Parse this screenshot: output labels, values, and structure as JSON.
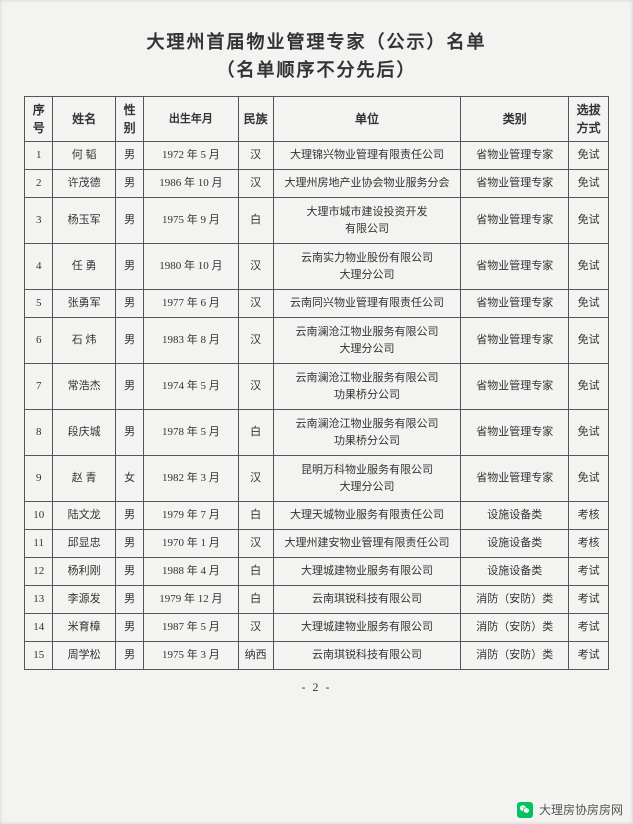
{
  "title": "大理州首届物业管理专家（公示）名单",
  "subtitle": "（名单顺序不分先后）",
  "columns": {
    "seq": "序号",
    "name": "姓名",
    "sex": "性别",
    "birth": "出生年月",
    "eth": "民族",
    "unit": "单位",
    "cat": "类别",
    "sel": "选拔方式"
  },
  "rows": [
    {
      "seq": "1",
      "name": "何 韬",
      "sex": "男",
      "birth": "1972 年 5 月",
      "eth": "汉",
      "unit": "大理锦兴物业管理有限责任公司",
      "cat": "省物业管理专家",
      "sel": "免试",
      "h": "short"
    },
    {
      "seq": "2",
      "name": "许茂德",
      "sex": "男",
      "birth": "1986 年 10 月",
      "eth": "汉",
      "unit": "大理州房地产业协会物业服务分会",
      "cat": "省物业管理专家",
      "sel": "免试",
      "h": "short"
    },
    {
      "seq": "3",
      "name": "杨玉军",
      "sex": "男",
      "birth": "1975 年 9 月",
      "eth": "白",
      "unit": "大理市城市建设投资开发\n有限公司",
      "cat": "省物业管理专家",
      "sel": "免试",
      "h": "tall"
    },
    {
      "seq": "4",
      "name": "任 勇",
      "sex": "男",
      "birth": "1980 年 10 月",
      "eth": "汉",
      "unit": "云南实力物业股份有限公司\n大理分公司",
      "cat": "省物业管理专家",
      "sel": "免试",
      "h": "tall"
    },
    {
      "seq": "5",
      "name": "张勇军",
      "sex": "男",
      "birth": "1977 年 6 月",
      "eth": "汉",
      "unit": "云南同兴物业管理有限责任公司",
      "cat": "省物业管理专家",
      "sel": "免试",
      "h": "short"
    },
    {
      "seq": "6",
      "name": "石 炜",
      "sex": "男",
      "birth": "1983 年 8 月",
      "eth": "汉",
      "unit": "云南澜沧江物业服务有限公司\n大理分公司",
      "cat": "省物业管理专家",
      "sel": "免试",
      "h": "tall"
    },
    {
      "seq": "7",
      "name": "常浩杰",
      "sex": "男",
      "birth": "1974 年 5 月",
      "eth": "汉",
      "unit": "云南澜沧江物业服务有限公司\n功果桥分公司",
      "cat": "省物业管理专家",
      "sel": "免试",
      "h": "tall"
    },
    {
      "seq": "8",
      "name": "段庆城",
      "sex": "男",
      "birth": "1978 年 5 月",
      "eth": "白",
      "unit": "云南澜沧江物业服务有限公司\n功果桥分公司",
      "cat": "省物业管理专家",
      "sel": "免试",
      "h": "tall"
    },
    {
      "seq": "9",
      "name": "赵 青",
      "sex": "女",
      "birth": "1982 年 3 月",
      "eth": "汉",
      "unit": "昆明万科物业服务有限公司\n大理分公司",
      "cat": "省物业管理专家",
      "sel": "免试",
      "h": "tall"
    },
    {
      "seq": "10",
      "name": "陆文龙",
      "sex": "男",
      "birth": "1979 年 7 月",
      "eth": "白",
      "unit": "大理天城物业服务有限责任公司",
      "cat": "设施设备类",
      "sel": "考核",
      "h": "short"
    },
    {
      "seq": "11",
      "name": "邱显忠",
      "sex": "男",
      "birth": "1970 年 1 月",
      "eth": "汉",
      "unit": "大理州建安物业管理有限责任公司",
      "cat": "设施设备类",
      "sel": "考核",
      "h": "short"
    },
    {
      "seq": "12",
      "name": "杨利刚",
      "sex": "男",
      "birth": "1988 年 4 月",
      "eth": "白",
      "unit": "大理城建物业服务有限公司",
      "cat": "设施设备类",
      "sel": "考试",
      "h": "short"
    },
    {
      "seq": "13",
      "name": "李源发",
      "sex": "男",
      "birth": "1979 年 12 月",
      "eth": "白",
      "unit": "云南琪锐科技有限公司",
      "cat": "消防（安防）类",
      "sel": "考试",
      "h": "short"
    },
    {
      "seq": "14",
      "name": "米育樟",
      "sex": "男",
      "birth": "1987 年 5 月",
      "eth": "汉",
      "unit": "大理城建物业服务有限公司",
      "cat": "消防（安防）类",
      "sel": "考试",
      "h": "short"
    },
    {
      "seq": "15",
      "name": "周学松",
      "sex": "男",
      "birth": "1975 年 3 月",
      "eth": "纳西",
      "unit": "云南琪锐科技有限公司",
      "cat": "消防（安防）类",
      "sel": "考试",
      "h": "short"
    }
  ],
  "pagenum": "- 2 -",
  "footer": "大理房协房房网"
}
